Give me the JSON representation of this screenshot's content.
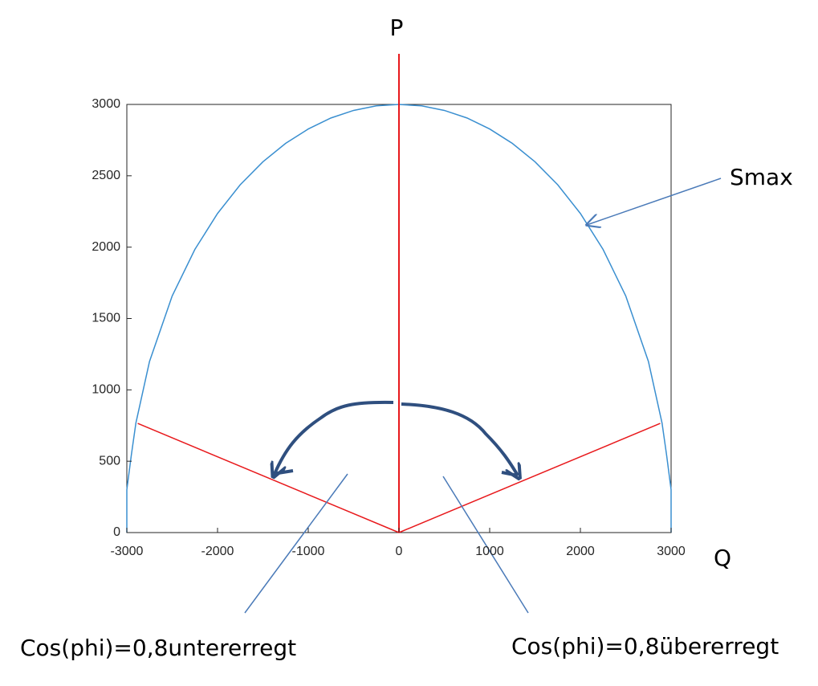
{
  "chart_data": {
    "type": "line",
    "x_label": "Q",
    "y_label": "P",
    "series": [
      {
        "color": "#3a8fd0",
        "x": [
          -3000,
          -3000,
          -2950,
          -2900,
          -2750,
          -2500,
          -2250,
          -2000,
          -1750,
          -1500,
          -1250,
          -1000,
          -750,
          -500,
          -250,
          0,
          250,
          500,
          750,
          1000,
          1250,
          1500,
          1750,
          2000,
          2250,
          2500,
          2750,
          2900,
          2950,
          3000,
          3000
        ],
        "values": [
          0,
          300,
          545,
          768,
          1199,
          1658,
          1984,
          2236,
          2437,
          2598,
          2727,
          2828,
          2905,
          2958,
          2990,
          3000,
          2990,
          2958,
          2905,
          2828,
          2727,
          2598,
          2437,
          2236,
          1984,
          1658,
          1199,
          768,
          545,
          300,
          0
        ]
      },
      {
        "color": "#e8191c",
        "x": [
          -2880,
          0,
          2880
        ],
        "values": [
          765,
          0,
          765
        ]
      }
    ],
    "xlim": [
      -3000,
      3000
    ],
    "ylim": [
      0,
      3000
    ],
    "xticks": [
      -3000,
      -2000,
      -1000,
      0,
      1000,
      2000,
      3000
    ],
    "yticks": [
      0,
      500,
      1000,
      1500,
      2000,
      2500,
      3000
    ],
    "annotations": [
      "Smax",
      "Cos(phi)=0,8untererregt",
      "Cos(phi)=0,8übererregt"
    ]
  }
}
